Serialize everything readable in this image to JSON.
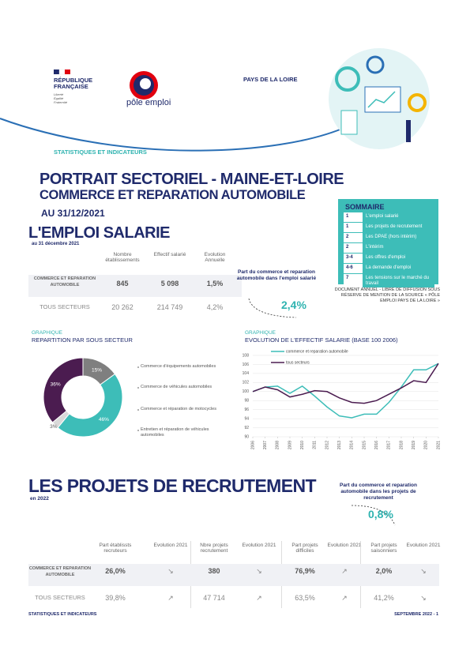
{
  "header": {
    "republique": [
      "RÉPUBLIQUE",
      "FRANÇAISE"
    ],
    "devise": [
      "Liberté",
      "Égalité",
      "Fraternité"
    ],
    "brand": "pôle emploi",
    "region": "PAYS DE LA LOIRE",
    "kicker": "STATISTIQUES ET INDICATEURS"
  },
  "title": {
    "line1": "PORTRAIT SECTORIEL - MAINE-ET-LOIRE",
    "line2": "COMMERCE ET REPARATION AUTOMOBILE",
    "date": "AU 31/12/2021"
  },
  "sommaire": {
    "title": "SOMMAIRE",
    "items": [
      [
        "1",
        "L'emploi salarié"
      ],
      [
        "1",
        "Les projets de recrutement"
      ],
      [
        "2",
        "Les DPAE (hors intérim)"
      ],
      [
        "2",
        "L'intérim"
      ],
      [
        "3-4",
        "Les offres d'emploi"
      ],
      [
        "4-6",
        "La demande d'emploi"
      ],
      [
        "7",
        "Les tensions sur le marché du travail"
      ]
    ]
  },
  "emploi": {
    "heading": "L'EMPLOI SALARIE",
    "subheading": "au 31 décembre 2021",
    "table": {
      "header": [
        "Nombre établissements",
        "Effectif salarié",
        "Evolution Annuelle"
      ],
      "rows": [
        [
          "COMMERCE ET REPARATION AUTOMOBILE",
          "845",
          "5 098",
          "1,5%"
        ],
        [
          "TOUS SECTEURS",
          "20 262",
          "214 749",
          "4,2%"
        ]
      ]
    },
    "callout": {
      "text": "Part du commerce et reparation automobile dans l'emploi salarié",
      "value": "2,4%"
    },
    "note": "DOCUMENT ANNUEL - LIBRE DE DIFFUSION SOUS RÉSERVE DE MENTION DE LA SOURCE « PÔLE EMPLOI PAYS DE LA LOIRE »",
    "graph_labels": [
      [
        "GRAPHIQUE",
        "REPARTITION PAR SOUS SECTEUR"
      ],
      [
        "GRAPHIQUE",
        "EVOLUTION DE L'EFFECTIF SALARIE (BASE 100 2006)"
      ]
    ]
  },
  "chart_data": [
    {
      "type": "pie",
      "categories": [
        "Commerce d'équipements automobiles",
        "Commerce de véhicules automobiles",
        "Commerce et réparation de motocycles",
        "Entretien et réparation de véhicules automobiles"
      ],
      "values": [
        15,
        46,
        3,
        36
      ],
      "value_labels": [
        "15%",
        "46%",
        "3%",
        "36%"
      ],
      "colors": [
        "#7f7f7f",
        "#3dbdb8",
        "#d9d9d9",
        "#4b1c50"
      ]
    },
    {
      "type": "line",
      "x": [
        2006,
        2007,
        2008,
        2009,
        2010,
        2011,
        2012,
        2013,
        2014,
        2015,
        2016,
        2017,
        2018,
        2019,
        2020,
        2021
      ],
      "xlim": [
        2006,
        2021
      ],
      "xticks": [
        2006,
        2007,
        2008,
        2009,
        2010,
        2011,
        2012,
        2013,
        2014,
        2015,
        2016,
        2017,
        2018,
        2019,
        2020,
        2021
      ],
      "ylim": [
        90,
        108
      ],
      "yticks": [
        90,
        92,
        94,
        96,
        98,
        100,
        102,
        104,
        106,
        108
      ],
      "grid": true,
      "series": [
        {
          "name": "commerce et reparation automobile",
          "color": "#3dbdb8",
          "values": [
            100,
            101,
            101.2,
            99.6,
            101.2,
            99,
            96.6,
            94.6,
            94.2,
            95,
            95,
            97.6,
            101,
            104.8,
            104.8,
            106.2
          ]
        },
        {
          "name": "tous secteurs",
          "color": "#4b1c50",
          "values": [
            100,
            101,
            100.4,
            98.8,
            99.4,
            100.2,
            100,
            98.6,
            97.6,
            97.4,
            98,
            99.4,
            100.8,
            102.4,
            102,
            106.2
          ]
        }
      ]
    }
  ],
  "recrutement": {
    "heading": "LES PROJETS DE RECRUTEMENT",
    "subheading": "en 2022",
    "callout": {
      "text": "Part du commerce et reparation automobile dans les projets de recrutement",
      "value": "0,8%"
    },
    "table": {
      "header": [
        "Part établissts recruteurs",
        "Evolution 2021",
        "Nbre projets recrutement",
        "Evolution 2021",
        "Part projets difficiles",
        "Evolution 2021",
        "Part projets saisonniers",
        "Evolution 2021"
      ],
      "rows": [
        [
          "COMMERCE ET REPARATION AUTOMOBILE",
          "26,0%",
          "↘",
          "380",
          "↘",
          "76,9%",
          "↗",
          "2,0%",
          "↘"
        ],
        [
          "TOUS SECTEURS",
          "39,8%",
          "↗",
          "47 714",
          "↗",
          "63,5%",
          "↗",
          "41,2%",
          "↘"
        ]
      ]
    }
  },
  "footer": {
    "left": "STATISTIQUES ET INDICATEURS",
    "right": "SEPTEMBRE 2022 - 1"
  }
}
